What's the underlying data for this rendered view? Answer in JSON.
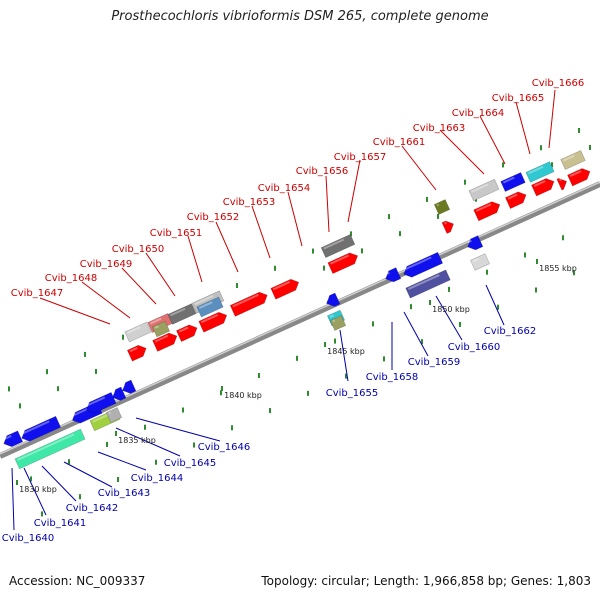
{
  "title": "Prosthecochloris vibrioformis DSM 265, complete genome",
  "accession_label": "Accession: NC_009337",
  "summary_label": "Topology: circular; Length: 1,966,858 bp; Genes: 1,803",
  "colors": {
    "forward_label": "#cc0000",
    "reverse_label": "#0000aa",
    "forward_gene": "#ff0000",
    "reverse_gene": "#1010ee",
    "axis": "#999999",
    "tick": "#2e8b2e"
  },
  "scale_labels": [
    "1830 kbp",
    "1835 kbp",
    "1840 kbp",
    "1845 kbp",
    "1850 kbp",
    "1855 kbp"
  ],
  "forward_genes": [
    "Cvib_1647",
    "Cvib_1648",
    "Cvib_1649",
    "Cvib_1650",
    "Cvib_1651",
    "Cvib_1652",
    "Cvib_1653",
    "Cvib_1654",
    "Cvib_1656",
    "Cvib_1657",
    "Cvib_1661",
    "Cvib_1663",
    "Cvib_1664",
    "Cvib_1665",
    "Cvib_1666"
  ],
  "reverse_genes": [
    "Cvib_1640",
    "Cvib_1641",
    "Cvib_1642",
    "Cvib_1643",
    "Cvib_1644",
    "Cvib_1645",
    "Cvib_1646",
    "Cvib_1655",
    "Cvib_1658",
    "Cvib_1659",
    "Cvib_1660",
    "Cvib_1662"
  ]
}
